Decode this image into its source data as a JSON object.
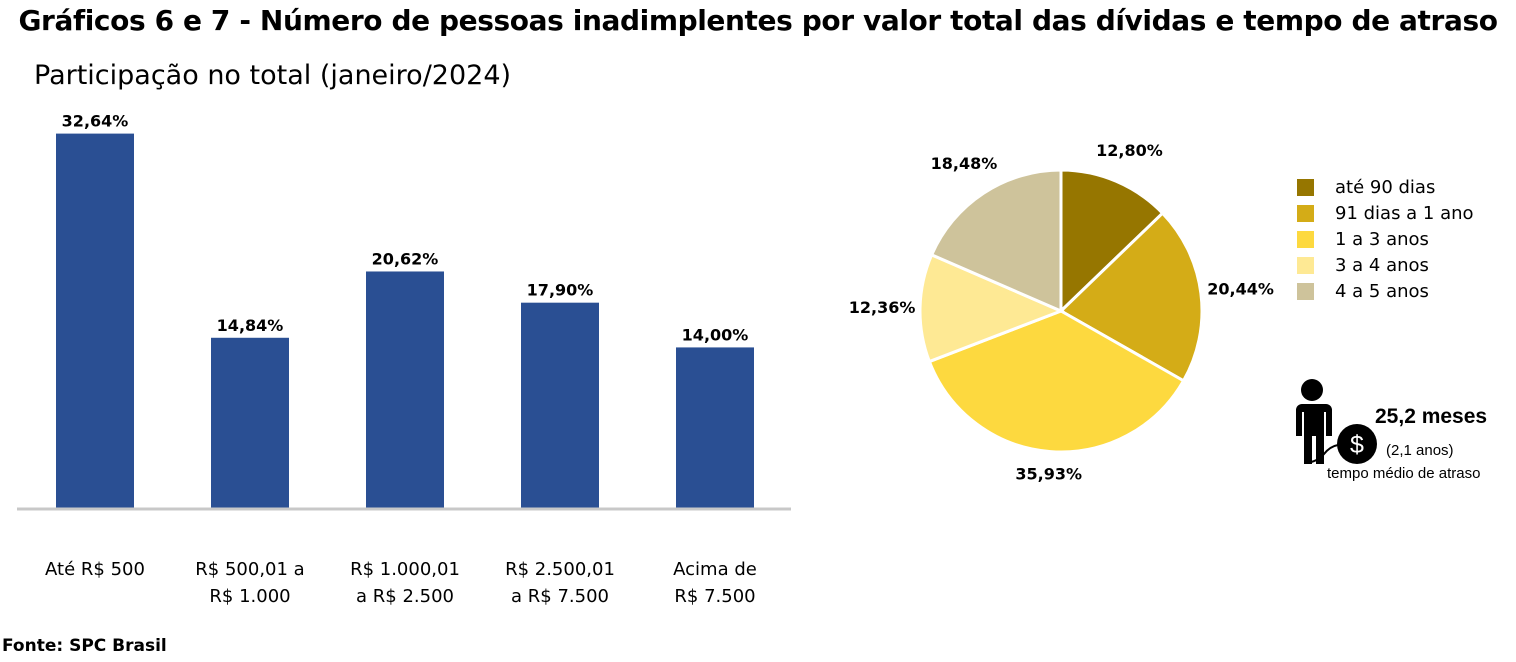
{
  "title": "Gráficos 6 e 7 - Número de pessoas inadimplentes por valor total das dívidas e tempo de atraso",
  "subtitle": "Participação no total (janeiro/2024)",
  "source": "Fonte: SPC Brasil",
  "chart_data": [
    {
      "type": "bar",
      "categories": [
        [
          "Até R$ 500"
        ],
        [
          "R$ 500,01 a",
          "R$ 1.000"
        ],
        [
          "R$ 1.000,01",
          "a R$ 2.500"
        ],
        [
          "R$ 2.500,01",
          "a R$ 7.500"
        ],
        [
          "Acima de",
          "R$ 7.500"
        ]
      ],
      "values": [
        32.64,
        14.84,
        20.62,
        17.9,
        14.0
      ],
      "data_labels": [
        "32,64%",
        "14,84%",
        "20,62%",
        "17,90%",
        "14,00%"
      ],
      "ylim": [
        0,
        34
      ],
      "color": "#2a4f93",
      "grid": false
    },
    {
      "type": "pie",
      "labels": [
        "até 90 dias",
        "91 dias a 1 ano",
        "1 a 3 anos",
        "3 a 4 anos",
        "4 a 5 anos"
      ],
      "values": [
        12.8,
        20.44,
        35.93,
        12.36,
        18.48
      ],
      "data_labels": [
        "12,80%",
        "20,44%",
        "35,93%",
        "12,36%",
        "18,48%"
      ],
      "colors": [
        "#967600",
        "#d4ac17",
        "#fdd93f",
        "#fee994",
        "#cec39b"
      ],
      "legend": "right"
    }
  ],
  "callout": {
    "icon": "person-money-icon",
    "value": "25,2 meses",
    "sub": "(2,1 anos)",
    "description": "tempo médio de atraso"
  }
}
